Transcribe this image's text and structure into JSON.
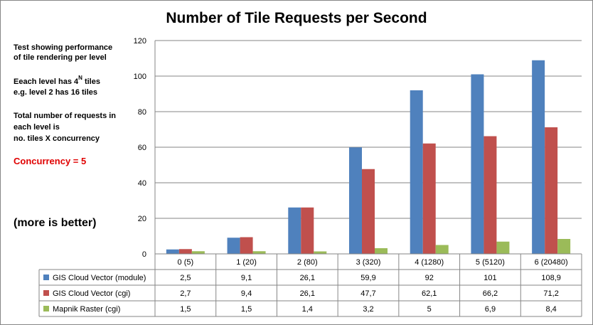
{
  "chart_data": {
    "type": "bar",
    "title": "Number of Tile Requests per Second",
    "categories": [
      "0 (5)",
      "1 (20)",
      "2 (80)",
      "3 (320)",
      "4 (1280)",
      "5 (5120)",
      "6 (20480)"
    ],
    "series": [
      {
        "name": "GIS Cloud Vector (module)",
        "color": "#4f81bd",
        "values": [
          2.5,
          9.1,
          26.1,
          59.9,
          92,
          101,
          108.9
        ],
        "labels": [
          "2,5",
          "9,1",
          "26,1",
          "59,9",
          "92",
          "101",
          "108,9"
        ]
      },
      {
        "name": "GIS Cloud Vector (cgi)",
        "color": "#c0504d",
        "values": [
          2.7,
          9.4,
          26.1,
          47.7,
          62.1,
          66.2,
          71.2
        ],
        "labels": [
          "2,7",
          "9,4",
          "26,1",
          "47,7",
          "62,1",
          "66,2",
          "71,2"
        ]
      },
      {
        "name": "Mapnik Raster (cgi)",
        "color": "#9bbb59",
        "values": [
          1.5,
          1.5,
          1.4,
          3.2,
          5,
          6.9,
          8.4
        ],
        "labels": [
          "1,5",
          "1,5",
          "1,4",
          "3,2",
          "5",
          "6,9",
          "8,4"
        ]
      }
    ],
    "ylim": [
      0,
      120
    ],
    "yticks": [
      0,
      20,
      40,
      60,
      80,
      100,
      120
    ],
    "grid": true,
    "legend": "data-table"
  },
  "notes": {
    "line1": "Test  showing performance",
    "line2": "of tile rendering per level",
    "line3a": "Eeach level has 4",
    "line3sup": "N",
    "line3b": " tiles",
    "line4": "e.g. level 2 has 16 tiles",
    "line5": "Total number of requests in",
    "line6": "each level is",
    "line7": "no. tiles X concurrency",
    "concurrency": "Concurrency = 5",
    "better": "(more is better)"
  }
}
